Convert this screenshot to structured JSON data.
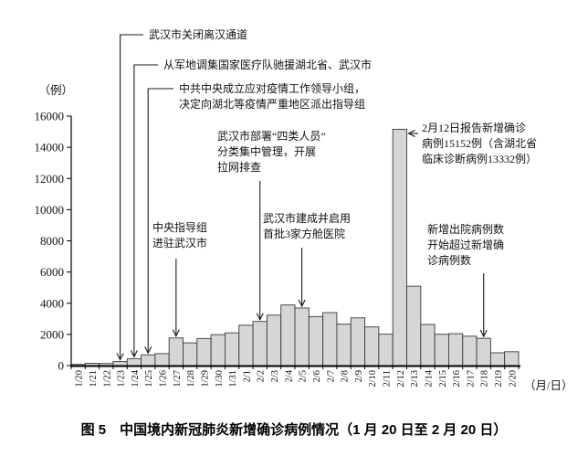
{
  "figure": {
    "caption": "图 5　中国境内新冠肺炎新增确诊病例情况（1 月 20 日至 2 月 20 日）",
    "y_axis_unit": "（例）",
    "x_axis_unit": "（月/日）"
  },
  "chart_data": {
    "type": "bar",
    "title": "图 5　中国境内新冠肺炎新增确诊病例情况（1 月 20 日至 2 月 20 日）",
    "xlabel": "（月/日）",
    "ylabel": "（例）",
    "categories": [
      "1/20",
      "1/21",
      "1/22",
      "1/23",
      "1/24",
      "1/25",
      "1/26",
      "1/27",
      "1/28",
      "1/29",
      "1/30",
      "1/31",
      "2/1",
      "2/2",
      "2/3",
      "2/4",
      "2/5",
      "2/6",
      "2/7",
      "2/8",
      "2/9",
      "2/10",
      "2/11",
      "2/12",
      "2/13",
      "2/14",
      "2/15",
      "2/16",
      "2/17",
      "2/18",
      "2/19",
      "2/20"
    ],
    "values": [
      77,
      149,
      131,
      259,
      444,
      688,
      769,
      1771,
      1459,
      1737,
      1982,
      2102,
      2590,
      2829,
      3235,
      3887,
      3694,
      3143,
      3399,
      2656,
      3062,
      2478,
      2015,
      15152,
      5090,
      2641,
      2009,
      2048,
      1886,
      1749,
      820,
      889
    ],
    "ylim": [
      0,
      16000
    ],
    "yticks": [
      0,
      2000,
      4000,
      6000,
      8000,
      10000,
      12000,
      14000,
      16000
    ],
    "grid": false,
    "legend": null,
    "colors": {
      "bar_fill": "#d6d6d6",
      "bar_stroke": "#3a3a3a",
      "axis": "#000000",
      "annotation_line": "#1a1a1a"
    },
    "annotations": [
      {
        "id": "close-wuhan-channels",
        "target_date": "1/23",
        "lines": [
          "武汉市关闭离汉通道"
        ]
      },
      {
        "id": "medical-teams",
        "target_date": "1/24",
        "lines": [
          "从军地调集国家医疗队驰援湖北省、武汉市"
        ]
      },
      {
        "id": "leading-group",
        "target_date": "1/25",
        "lines": [
          "中共中央成立应对疫情工作领导小组，",
          "决定向湖北等疫情严重地区派出指导组"
        ]
      },
      {
        "id": "guidance-group",
        "target_date": "1/27",
        "lines": [
          "中央指导组",
          "进驻武汉市"
        ]
      },
      {
        "id": "four-categories",
        "target_date": "2/2",
        "lines": [
          "武汉市部署“四类人员”",
          "分类集中管理，开展",
          "拉网排查"
        ]
      },
      {
        "id": "fangcang-hospitals",
        "target_date": "2/5",
        "lines": [
          "武汉市建成并启用",
          "首批3家方舱医院"
        ]
      },
      {
        "id": "feb12-spike",
        "target_date": "2/12",
        "lines": [
          "2月12日报告新增确诊",
          "病例15152例（含湖北省",
          "临床诊断病例13332例）"
        ]
      },
      {
        "id": "discharges-exceed",
        "target_date": "2/18",
        "lines": [
          "新增出院病例数",
          "开始超过新增确",
          "诊病例数"
        ]
      }
    ]
  }
}
